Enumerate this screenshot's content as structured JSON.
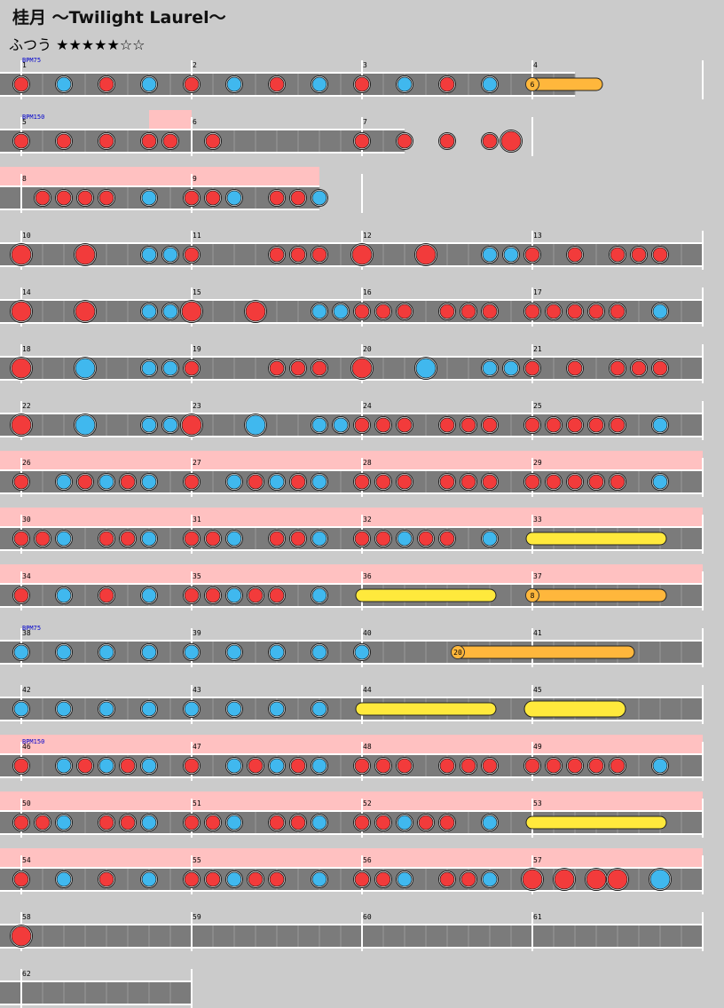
{
  "song_title": "桂月 〜Twilight Laurel〜",
  "difficulty": {
    "label": "ふつう",
    "stars": "★★★★★☆☆"
  },
  "bpm_labels": [
    "BPM75",
    "BPM150",
    "BPM75",
    "BPM150"
  ],
  "measure_numbers": [
    1,
    2,
    3,
    4,
    5,
    6,
    7,
    8,
    9,
    10,
    11,
    12,
    13,
    14,
    15,
    16,
    17,
    18,
    19,
    20,
    21,
    22,
    23,
    24,
    25,
    26,
    27,
    28,
    29,
    30,
    31,
    32,
    33,
    34,
    35,
    36,
    37,
    38,
    39,
    40,
    41,
    42,
    43,
    44,
    45,
    46,
    47,
    48,
    49,
    50,
    51,
    52,
    53,
    54,
    55,
    56,
    57,
    58,
    59,
    60,
    61,
    62
  ],
  "drumroll_counts": [
    "6",
    "8",
    "20"
  ],
  "colors": {
    "background": "#cbcbcb",
    "lane": "#7b7b7b",
    "gogo": "#ffc1c1",
    "don": "#f23b3b",
    "ka": "#40b8ee",
    "drumroll": "#ffb73c",
    "balloon_roll": "#ffe93c",
    "bpm_text": "#0000cc"
  },
  "legend_note_types": {
    "d": "don",
    "k": "ka",
    "D": "big-don",
    "K": "big-ka",
    "y": "drumroll",
    "Y": "big-drumroll"
  },
  "rows": [
    {
      "measures": [
        1,
        2,
        3,
        4
      ],
      "bars": 3.25,
      "gogo": [],
      "bpm": "BPM75",
      "notes": [
        [
          "d",
          0
        ],
        [
          "k",
          2
        ],
        [
          "d",
          4
        ],
        [
          "k",
          6
        ],
        [
          "d",
          8
        ],
        [
          "k",
          10
        ],
        [
          "d",
          12
        ],
        [
          "k",
          14
        ],
        [
          "d",
          16
        ],
        [
          "k",
          18
        ],
        [
          "d",
          20
        ],
        [
          "k",
          22
        ]
      ],
      "rolls": [
        {
          "start": 24,
          "end": 27,
          "type": "y",
          "count": "6"
        }
      ]
    },
    {
      "measures": [
        5,
        6,
        7
      ],
      "bars": 2.25,
      "gogo": [
        [
          0.75,
          1
        ]
      ],
      "bpm": "BPM150",
      "notes": [
        [
          "d",
          0
        ],
        [
          "d",
          2
        ],
        [
          "d",
          4
        ],
        [
          "d",
          6
        ],
        [
          "d",
          7
        ],
        [
          "d",
          9
        ],
        [
          "d",
          16
        ],
        [
          "d",
          18
        ],
        [
          "d",
          20
        ],
        [
          "d",
          22
        ],
        [
          "D",
          23
        ]
      ],
      "rolls": []
    },
    {
      "measures": [
        8,
        9
      ],
      "bars": 1.75,
      "gogo": [
        [
          0,
          1.75
        ]
      ],
      "notes": [
        [
          "d",
          1
        ],
        [
          "d",
          2
        ],
        [
          "d",
          3
        ],
        [
          "d",
          4
        ],
        [
          "k",
          6
        ],
        [
          "d",
          8
        ],
        [
          "d",
          9
        ],
        [
          "k",
          10
        ],
        [
          "d",
          12
        ],
        [
          "d",
          13
        ],
        [
          "k",
          14
        ]
      ],
      "rolls": []
    },
    {
      "measures": [
        10,
        11,
        12,
        13
      ],
      "bars": 4,
      "gogo": [],
      "notes": [
        [
          "D",
          0
        ],
        [
          "D",
          3
        ],
        [
          "k",
          6
        ],
        [
          "k",
          7
        ],
        [
          "d",
          8
        ],
        [
          "d",
          12
        ],
        [
          "d",
          13
        ],
        [
          "d",
          14
        ],
        [
          "D",
          16
        ],
        [
          "D",
          19
        ],
        [
          "k",
          22
        ],
        [
          "k",
          23
        ],
        [
          "d",
          24
        ],
        [
          "d",
          26
        ],
        [
          "d",
          28
        ],
        [
          "d",
          29
        ],
        [
          "d",
          30
        ]
      ],
      "rolls": []
    },
    {
      "measures": [
        14,
        15,
        16,
        17
      ],
      "bars": 4,
      "gogo": [],
      "notes": [
        [
          "D",
          0
        ],
        [
          "D",
          3
        ],
        [
          "k",
          6
        ],
        [
          "k",
          7
        ],
        [
          "D",
          8
        ],
        [
          "D",
          11
        ],
        [
          "k",
          14
        ],
        [
          "k",
          15
        ],
        [
          "d",
          16
        ],
        [
          "d",
          17
        ],
        [
          "d",
          18
        ],
        [
          "d",
          20
        ],
        [
          "d",
          21
        ],
        [
          "d",
          22
        ],
        [
          "d",
          24
        ],
        [
          "d",
          25
        ],
        [
          "d",
          26
        ],
        [
          "d",
          27
        ],
        [
          "d",
          28
        ],
        [
          "k",
          30
        ]
      ],
      "rolls": []
    },
    {
      "measures": [
        18,
        19,
        20,
        21
      ],
      "bars": 4,
      "gogo": [],
      "notes": [
        [
          "D",
          0
        ],
        [
          "K",
          3
        ],
        [
          "k",
          6
        ],
        [
          "k",
          7
        ],
        [
          "d",
          8
        ],
        [
          "d",
          12
        ],
        [
          "d",
          13
        ],
        [
          "d",
          14
        ],
        [
          "D",
          16
        ],
        [
          "K",
          19
        ],
        [
          "k",
          22
        ],
        [
          "k",
          23
        ],
        [
          "d",
          24
        ],
        [
          "d",
          26
        ],
        [
          "d",
          28
        ],
        [
          "d",
          29
        ],
        [
          "d",
          30
        ]
      ],
      "rolls": []
    },
    {
      "measures": [
        22,
        23,
        24,
        25
      ],
      "bars": 4,
      "gogo": [],
      "notes": [
        [
          "D",
          0
        ],
        [
          "K",
          3
        ],
        [
          "k",
          6
        ],
        [
          "k",
          7
        ],
        [
          "D",
          8
        ],
        [
          "K",
          11
        ],
        [
          "k",
          14
        ],
        [
          "k",
          15
        ],
        [
          "d",
          16
        ],
        [
          "d",
          17
        ],
        [
          "d",
          18
        ],
        [
          "d",
          20
        ],
        [
          "d",
          21
        ],
        [
          "d",
          22
        ],
        [
          "d",
          24
        ],
        [
          "d",
          25
        ],
        [
          "d",
          26
        ],
        [
          "d",
          27
        ],
        [
          "d",
          28
        ],
        [
          "k",
          30
        ]
      ],
      "rolls": []
    },
    {
      "measures": [
        26,
        27,
        28,
        29
      ],
      "bars": 4,
      "gogo": [
        [
          0,
          4
        ]
      ],
      "notes": [
        [
          "d",
          0
        ],
        [
          "k",
          2
        ],
        [
          "d",
          3
        ],
        [
          "k",
          4
        ],
        [
          "d",
          5
        ],
        [
          "k",
          6
        ],
        [
          "d",
          8
        ],
        [
          "k",
          10
        ],
        [
          "d",
          11
        ],
        [
          "k",
          12
        ],
        [
          "d",
          13
        ],
        [
          "k",
          14
        ],
        [
          "d",
          16
        ],
        [
          "d",
          17
        ],
        [
          "d",
          18
        ],
        [
          "d",
          20
        ],
        [
          "d",
          21
        ],
        [
          "d",
          22
        ],
        [
          "d",
          24
        ],
        [
          "d",
          25
        ],
        [
          "d",
          26
        ],
        [
          "d",
          27
        ],
        [
          "d",
          28
        ],
        [
          "k",
          30
        ]
      ],
      "rolls": []
    },
    {
      "measures": [
        30,
        31,
        32,
        33
      ],
      "bars": 4,
      "gogo": [
        [
          0,
          4
        ]
      ],
      "notes": [
        [
          "d",
          0
        ],
        [
          "d",
          1
        ],
        [
          "k",
          2
        ],
        [
          "d",
          4
        ],
        [
          "d",
          5
        ],
        [
          "k",
          6
        ],
        [
          "d",
          8
        ],
        [
          "d",
          9
        ],
        [
          "k",
          10
        ],
        [
          "d",
          12
        ],
        [
          "d",
          13
        ],
        [
          "k",
          14
        ],
        [
          "d",
          16
        ],
        [
          "d",
          17
        ],
        [
          "k",
          18
        ],
        [
          "d",
          19
        ],
        [
          "d",
          20
        ],
        [
          "k",
          22
        ]
      ],
      "rolls": [
        {
          "start": 24,
          "end": 30,
          "type": "Y",
          "count": ""
        }
      ]
    },
    {
      "measures": [
        34,
        35,
        36,
        37
      ],
      "bars": 4,
      "gogo": [
        [
          0,
          4
        ]
      ],
      "notes": [
        [
          "d",
          0
        ],
        [
          "k",
          2
        ],
        [
          "d",
          4
        ],
        [
          "k",
          6
        ],
        [
          "d",
          8
        ],
        [
          "d",
          9
        ],
        [
          "k",
          10
        ],
        [
          "d",
          11
        ],
        [
          "d",
          12
        ],
        [
          "k",
          14
        ]
      ],
      "rolls": [
        {
          "start": 16,
          "end": 22,
          "type": "Y",
          "count": ""
        },
        {
          "start": 24,
          "end": 30,
          "type": "y",
          "count": "8"
        }
      ]
    },
    {
      "measures": [
        38,
        39,
        40,
        41
      ],
      "bars": 4,
      "gogo": [],
      "bpm": "BPM75",
      "notes": [
        [
          "k",
          0
        ],
        [
          "k",
          2
        ],
        [
          "k",
          4
        ],
        [
          "k",
          6
        ],
        [
          "k",
          8
        ],
        [
          "k",
          10
        ],
        [
          "k",
          12
        ],
        [
          "k",
          14
        ],
        [
          "k",
          16
        ]
      ],
      "rolls": [
        {
          "start": 20.5,
          "end": 28.5,
          "type": "y",
          "count": "20"
        }
      ]
    },
    {
      "measures": [
        42,
        43,
        44,
        45
      ],
      "bars": 4,
      "gogo": [],
      "notes": [
        [
          "k",
          0
        ],
        [
          "k",
          2
        ],
        [
          "k",
          4
        ],
        [
          "k",
          6
        ],
        [
          "k",
          8
        ],
        [
          "k",
          10
        ],
        [
          "k",
          12
        ],
        [
          "k",
          14
        ]
      ],
      "rolls": [
        {
          "start": 16,
          "end": 22,
          "type": "Y",
          "count": ""
        },
        {
          "start": 24,
          "end": 28,
          "type": "YB",
          "count": ""
        }
      ]
    },
    {
      "measures": [
        46,
        47,
        48,
        49
      ],
      "bars": 4,
      "gogo": [
        [
          0,
          4
        ]
      ],
      "bpm": "BPM150",
      "notes": [
        [
          "d",
          0
        ],
        [
          "k",
          2
        ],
        [
          "d",
          3
        ],
        [
          "k",
          4
        ],
        [
          "d",
          5
        ],
        [
          "k",
          6
        ],
        [
          "d",
          8
        ],
        [
          "k",
          10
        ],
        [
          "d",
          11
        ],
        [
          "k",
          12
        ],
        [
          "d",
          13
        ],
        [
          "k",
          14
        ],
        [
          "d",
          16
        ],
        [
          "d",
          17
        ],
        [
          "d",
          18
        ],
        [
          "d",
          20
        ],
        [
          "d",
          21
        ],
        [
          "d",
          22
        ],
        [
          "d",
          24
        ],
        [
          "d",
          25
        ],
        [
          "d",
          26
        ],
        [
          "d",
          27
        ],
        [
          "d",
          28
        ],
        [
          "k",
          30
        ]
      ],
      "rolls": []
    },
    {
      "measures": [
        50,
        51,
        52,
        53
      ],
      "bars": 4,
      "gogo": [
        [
          0,
          4
        ]
      ],
      "notes": [
        [
          "d",
          0
        ],
        [
          "d",
          1
        ],
        [
          "k",
          2
        ],
        [
          "d",
          4
        ],
        [
          "d",
          5
        ],
        [
          "k",
          6
        ],
        [
          "d",
          8
        ],
        [
          "d",
          9
        ],
        [
          "k",
          10
        ],
        [
          "d",
          12
        ],
        [
          "d",
          13
        ],
        [
          "k",
          14
        ],
        [
          "d",
          16
        ],
        [
          "d",
          17
        ],
        [
          "k",
          18
        ],
        [
          "d",
          19
        ],
        [
          "d",
          20
        ],
        [
          "k",
          22
        ]
      ],
      "rolls": [
        {
          "start": 24,
          "end": 30,
          "type": "Y",
          "count": ""
        }
      ]
    },
    {
      "measures": [
        54,
        55,
        56,
        57
      ],
      "bars": 4,
      "gogo": [
        [
          0,
          4
        ]
      ],
      "notes": [
        [
          "d",
          0
        ],
        [
          "k",
          2
        ],
        [
          "d",
          4
        ],
        [
          "k",
          6
        ],
        [
          "d",
          8
        ],
        [
          "d",
          9
        ],
        [
          "k",
          10
        ],
        [
          "d",
          11
        ],
        [
          "d",
          12
        ],
        [
          "k",
          14
        ],
        [
          "d",
          16
        ],
        [
          "d",
          17
        ],
        [
          "k",
          18
        ],
        [
          "d",
          20
        ],
        [
          "d",
          21
        ],
        [
          "k",
          22
        ],
        [
          "D",
          24
        ],
        [
          "D",
          25.5
        ],
        [
          "D",
          27
        ],
        [
          "D",
          28
        ],
        [
          "K",
          30
        ]
      ],
      "rolls": []
    },
    {
      "measures": [
        58,
        59,
        60,
        61
      ],
      "bars": 4,
      "gogo": [],
      "notes": [
        [
          "D",
          0
        ]
      ],
      "rolls": []
    },
    {
      "measures": [
        62
      ],
      "bars": 1,
      "gogo": [],
      "notes": [],
      "rolls": []
    }
  ]
}
